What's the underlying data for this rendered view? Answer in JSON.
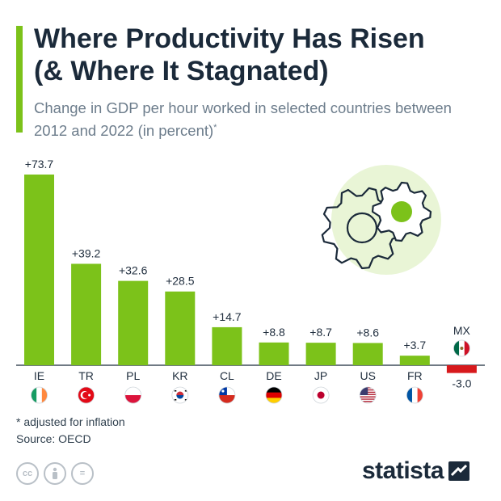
{
  "header": {
    "title": "Where Productivity Has Risen\n(& Where It Stagnated)",
    "subtitle": "Change in GDP per hour worked in selected countries between 2012 and 2022 (in percent)",
    "subtitle_mark": "*"
  },
  "colors": {
    "positive": "#7cc21a",
    "negative": "#d7191c",
    "accent": "#7cc21a",
    "gear_circle": "#e9f5d6",
    "gear_outline": "#1b2a3a",
    "text": "#1f2d3d"
  },
  "chart_data": {
    "type": "bar",
    "categories": [
      "IE",
      "TR",
      "PL",
      "KR",
      "CL",
      "DE",
      "JP",
      "US",
      "FR",
      "MX"
    ],
    "values": [
      73.7,
      39.2,
      32.6,
      28.5,
      14.7,
      8.8,
      8.7,
      8.6,
      3.7,
      -3.0
    ],
    "value_labels": [
      "+73.7",
      "+39.2",
      "+32.6",
      "+28.5",
      "+14.7",
      "+8.8",
      "+8.7",
      "+8.6",
      "+3.7",
      "-3.0"
    ],
    "flags": [
      "flag-ireland",
      "flag-turkey",
      "flag-poland",
      "flag-south-korea",
      "flag-chile",
      "flag-germany",
      "flag-japan",
      "flag-usa",
      "flag-france",
      "flag-mexico"
    ],
    "grid": false,
    "legend": "none"
  },
  "footer": {
    "footnote": "* adjusted for inflation",
    "source": "Source: OECD",
    "brand": "statista",
    "license_icons": [
      "cc-icon",
      "person-icon",
      "equals-icon"
    ],
    "license_labels": [
      "cc",
      "",
      "="
    ]
  }
}
